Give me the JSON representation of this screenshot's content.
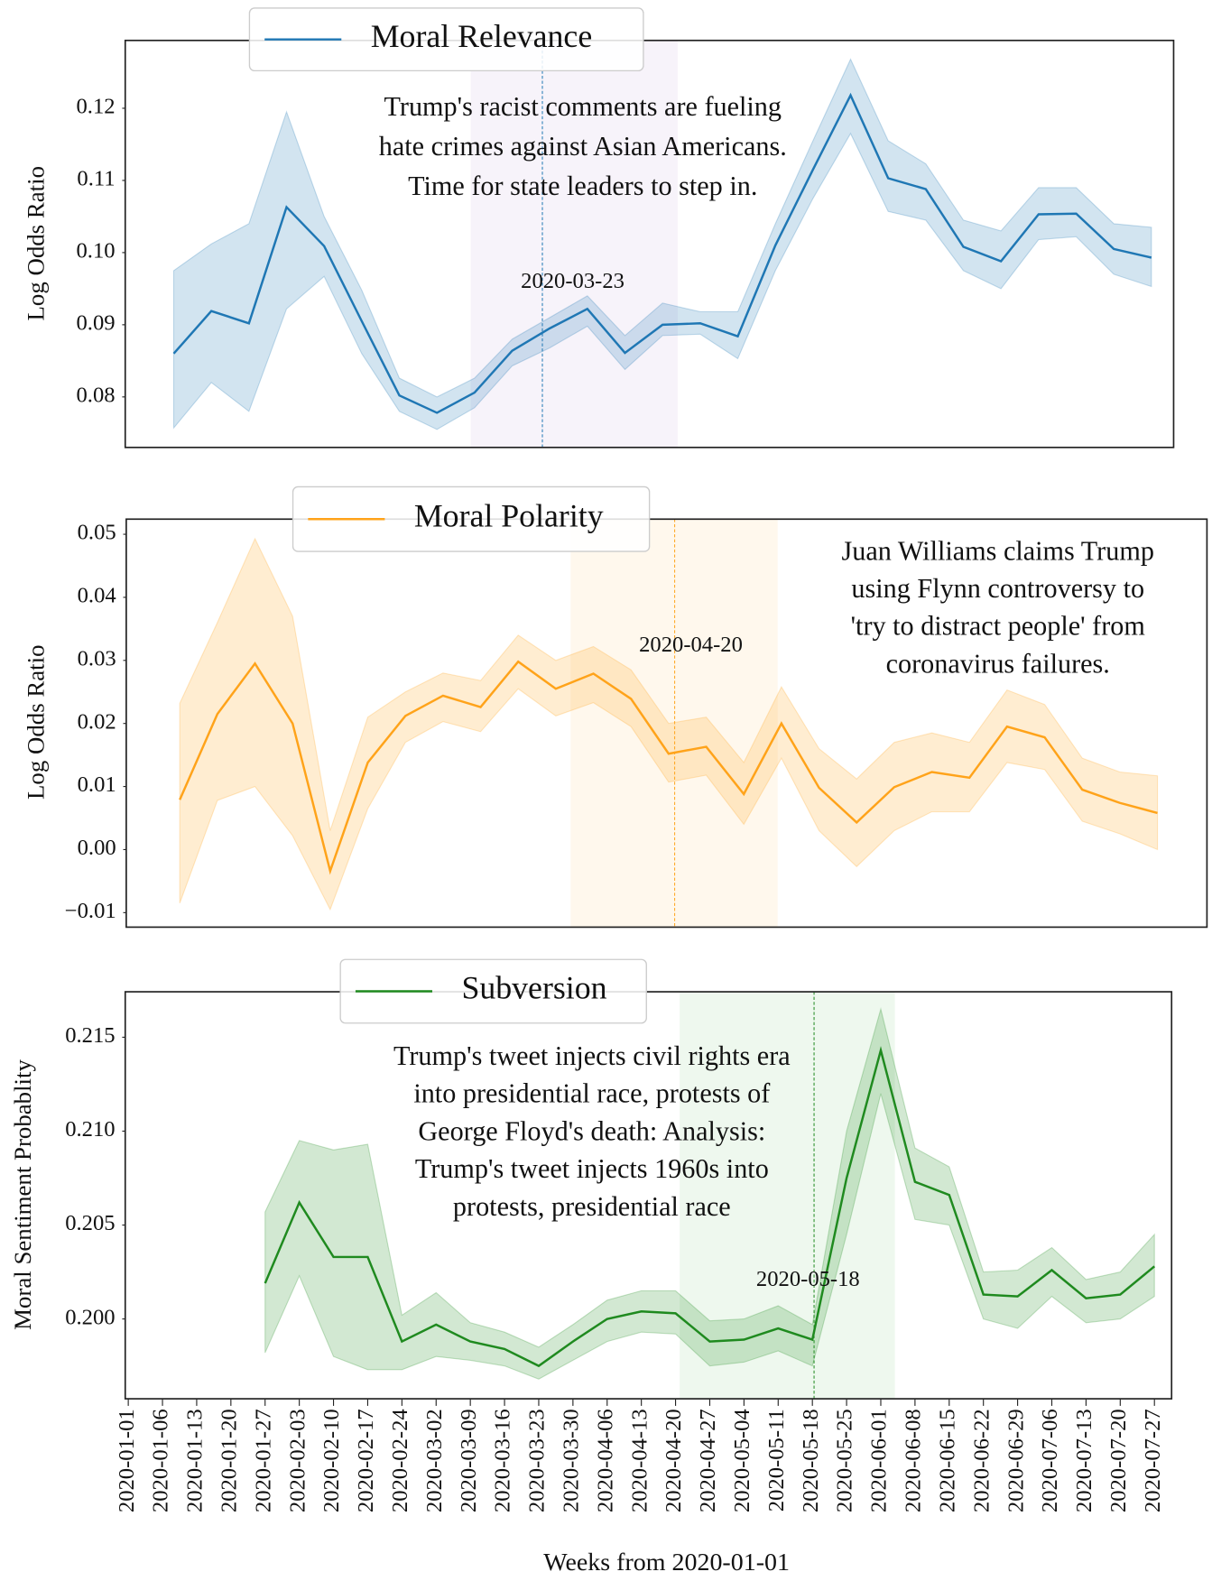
{
  "chart_data": [
    {
      "type": "line",
      "ylabel": "Log Odds Ratio",
      "ylim": [
        0.073,
        0.1294
      ],
      "yticks": [
        0.08,
        0.09,
        {
          "value": 0.1,
          "label": "0.10"
        },
        0.11,
        0.12
      ],
      "highlight_label": "2020-03-23",
      "highlight_color": "#9467bd",
      "annotation": [
        "Trump's racist comments are fueling",
        "hate crimes against Asian Americans.",
        "Time for state leaders to step in."
      ],
      "series": [
        {
          "name": "Moral Relevance",
          "color": "#1f77b4",
          "values": [
            0.086,
            0.0919,
            0.0902,
            0.1063,
            0.1009,
            0.0905,
            0.0802,
            0.0778,
            0.0806,
            0.0864,
            0.0895,
            0.0922,
            0.0861,
            0.09,
            0.0902,
            0.0884,
            0.101,
            0.1115,
            0.1218,
            0.1103,
            0.1088,
            0.1008,
            0.0988,
            0.1053,
            0.1054,
            0.1005,
            0.0993
          ],
          "lower": [
            0.0757,
            0.082,
            0.078,
            0.0922,
            0.0967,
            0.086,
            0.078,
            0.0755,
            0.0785,
            0.0843,
            0.0868,
            0.0898,
            0.0838,
            0.0885,
            0.0887,
            0.0853,
            0.0975,
            0.1075,
            0.1165,
            0.1057,
            0.1045,
            0.0975,
            0.095,
            0.1018,
            0.1022,
            0.097,
            0.0953
          ],
          "upper": [
            0.0975,
            0.1012,
            0.104,
            0.1195,
            0.105,
            0.0948,
            0.0826,
            0.08,
            0.0826,
            0.088,
            0.091,
            0.094,
            0.0885,
            0.093,
            0.0918,
            0.0918,
            0.104,
            0.1155,
            0.1268,
            0.1155,
            0.1123,
            0.1045,
            0.103,
            0.109,
            0.109,
            0.104,
            0.1035
          ]
        }
      ]
    },
    {
      "type": "line",
      "ylabel": "Log Odds Ratio",
      "ylim": [
        -0.0123,
        0.0524
      ],
      "yticks": [
        {
          "value": -0.01,
          "label": "−0.01"
        },
        {
          "value": 0,
          "label": "0.00"
        },
        0.01,
        0.02,
        0.03,
        0.04,
        0.05
      ],
      "highlight_label": "2020-04-20",
      "highlight_color": "#ffa31a",
      "annotation": [
        "Juan Williams claims Trump",
        "using Flynn controversy to",
        "'try to distract people' from",
        "coronavirus failures."
      ],
      "series": [
        {
          "name": "Moral Polarity",
          "color": "#ffa31a",
          "values": [
            0.0079,
            0.0215,
            0.0295,
            0.02,
            -0.0034,
            0.0138,
            0.0212,
            0.0244,
            0.0226,
            0.0298,
            0.0255,
            0.0279,
            0.0239,
            0.0152,
            0.0163,
            0.0088,
            0.02,
            0.0098,
            0.0043,
            0.0099,
            0.0123,
            0.0114,
            0.0195,
            0.0178,
            0.0095,
            0.0074,
            0.0058
          ],
          "lower": [
            -0.0085,
            0.0078,
            0.01,
            0.0022,
            -0.0095,
            0.0065,
            0.017,
            0.0203,
            0.0187,
            0.0255,
            0.0212,
            0.0233,
            0.0195,
            0.0107,
            0.0118,
            0.004,
            0.0145,
            0.003,
            -0.0027,
            0.003,
            0.006,
            0.006,
            0.0138,
            0.0127,
            0.0045,
            0.0025,
            0.0
          ],
          "upper": [
            0.0232,
            0.036,
            0.0493,
            0.037,
            0.003,
            0.021,
            0.025,
            0.028,
            0.0268,
            0.034,
            0.03,
            0.0322,
            0.0285,
            0.02,
            0.021,
            0.0138,
            0.0258,
            0.016,
            0.0112,
            0.017,
            0.0185,
            0.017,
            0.0253,
            0.023,
            0.0145,
            0.0123,
            0.0117
          ]
        }
      ]
    },
    {
      "type": "line",
      "ylabel": "Moral Sentiment Probablity",
      "xlabel": "Weeks from 2020-01-01",
      "ylim": [
        0.19575,
        0.21742
      ],
      "yticks": [
        {
          "value": 0.2,
          "label": "0.200"
        },
        0.205,
        {
          "value": 0.21,
          "label": "0.210"
        },
        0.215
      ],
      "highlight_label": "2020-05-18",
      "highlight_color": "#2ca02c",
      "annotation": [
        "Trump's tweet injects civil rights era",
        "into presidential race, protests of",
        "George Floyd's death: Analysis:",
        "Trump's tweet injects 1960s into",
        "protests, presidential race"
      ],
      "categories": [
        "2020-01-01",
        "2020-01-06",
        "2020-01-13",
        "2020-01-20",
        "2020-01-27",
        "2020-02-03",
        "2020-02-10",
        "2020-02-17",
        "2020-02-24",
        "2020-03-02",
        "2020-03-09",
        "2020-03-16",
        "2020-03-23",
        "2020-03-30",
        "2020-04-06",
        "2020-04-13",
        "2020-04-20",
        "2020-04-27",
        "2020-05-04",
        "2020-05-11",
        "2020-05-18",
        "2020-05-25",
        "2020-06-01",
        "2020-06-08",
        "2020-06-15",
        "2020-06-22",
        "2020-06-29",
        "2020-07-06",
        "2020-07-13",
        "2020-07-20",
        "2020-07-27"
      ],
      "series": [
        {
          "name": "Subversion",
          "color": "#1f8a1f",
          "values": [
            null,
            null,
            null,
            null,
            0.2019,
            0.2062,
            0.2033,
            0.2033,
            0.1988,
            0.1997,
            0.1988,
            0.1984,
            0.1975,
            0.1988,
            0.2,
            0.2004,
            0.2003,
            0.1988,
            0.1989,
            0.1995,
            0.1989,
            0.2075,
            0.2143,
            0.2073,
            0.2066,
            0.2013,
            0.2012,
            0.2026,
            0.2011,
            0.2013,
            0.2028
          ],
          "lower": [
            null,
            null,
            null,
            null,
            0.1982,
            0.2023,
            0.198,
            0.1973,
            0.1973,
            0.198,
            0.1978,
            0.1975,
            0.1968,
            0.1978,
            0.1988,
            0.1993,
            0.1992,
            0.1975,
            0.1977,
            0.1983,
            0.1975,
            0.2045,
            0.212,
            0.2053,
            0.205,
            0.2,
            0.1995,
            0.2012,
            0.1998,
            0.2,
            0.2012
          ],
          "upper": [
            null,
            null,
            null,
            null,
            0.2057,
            0.2095,
            0.209,
            0.2093,
            0.2002,
            0.2014,
            0.1998,
            0.1993,
            0.1985,
            0.1997,
            0.201,
            0.2015,
            0.2015,
            0.1999,
            0.2,
            0.2007,
            0.1997,
            0.21,
            0.2165,
            0.2091,
            0.2081,
            0.2025,
            0.2026,
            0.2038,
            0.2021,
            0.2025,
            0.2045
          ]
        }
      ]
    }
  ]
}
